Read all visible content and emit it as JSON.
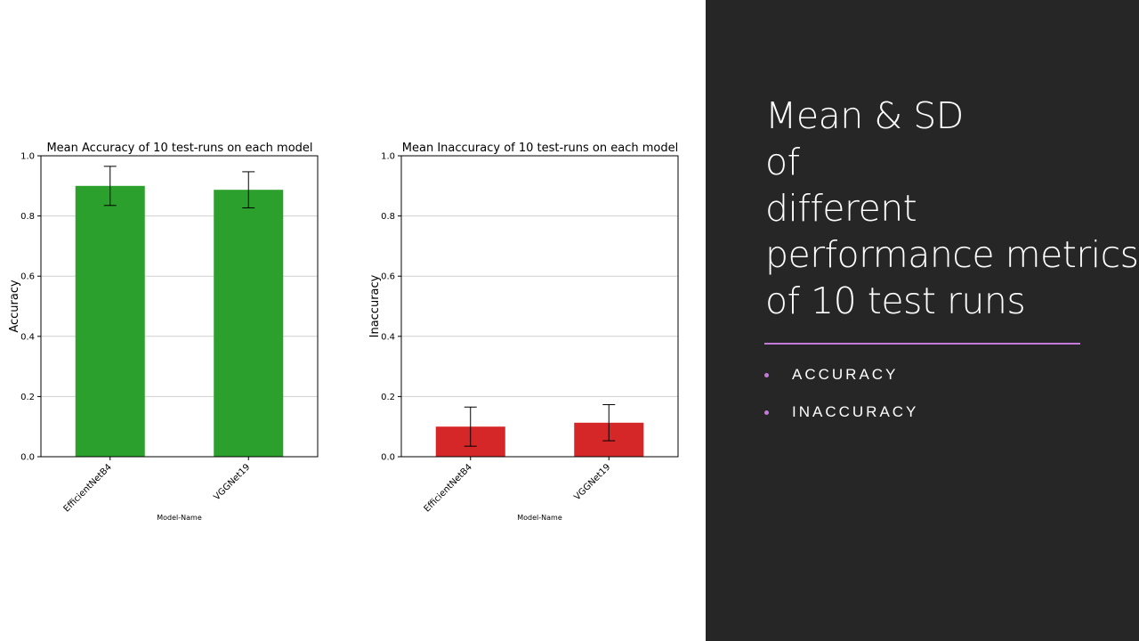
{
  "colors": {
    "accent": "#c678dd",
    "panel_bg": "#262626",
    "accuracy_bar": "#2ca02c",
    "inaccuracy_bar": "#d62728",
    "grid": "#d0d0d0"
  },
  "side_panel": {
    "title": "Mean & SD\nof\ndifferent\nperformance metrics\nof 10 test runs",
    "bullets": [
      "ACCURACY",
      "INACCURACY"
    ]
  },
  "chart_data": [
    {
      "type": "bar",
      "title": "Mean Accuracy of 10 test-runs on each model",
      "xlabel": "Model-Name",
      "ylabel": "Accuracy",
      "categories": [
        "EfficientNetB4",
        "VGGNet19"
      ],
      "values": [
        0.9,
        0.887
      ],
      "error": [
        0.065,
        0.06
      ],
      "ylim": [
        0,
        1.0
      ],
      "yticks": [
        "0.0",
        "0.2",
        "0.4",
        "0.6",
        "0.8",
        "1.0"
      ],
      "grid": true,
      "color": "#2ca02c"
    },
    {
      "type": "bar",
      "title": "Mean Inaccuracy of 10 test-runs on each model",
      "xlabel": "Model-Name",
      "ylabel": "Inaccuracy",
      "categories": [
        "EfficientNetB4",
        "VGGNet19"
      ],
      "values": [
        0.1,
        0.113
      ],
      "error": [
        0.065,
        0.06
      ],
      "ylim": [
        0,
        1.0
      ],
      "yticks": [
        "0.0",
        "0.2",
        "0.4",
        "0.6",
        "0.8",
        "1.0"
      ],
      "grid": true,
      "color": "#d62728"
    }
  ]
}
